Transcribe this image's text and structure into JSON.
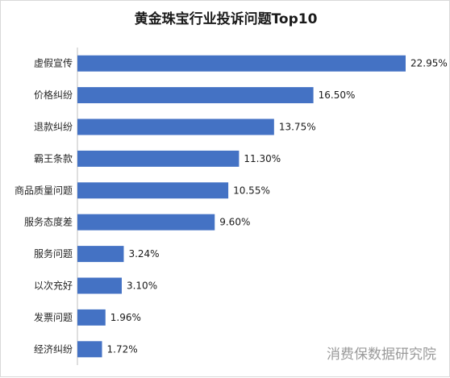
{
  "chart_data": {
    "type": "bar",
    "orientation": "horizontal",
    "title": "黄金珠宝行业投诉问题Top10",
    "categories": [
      "虚假宣传",
      "价格纠纷",
      "退款纠纷",
      "霸王条款",
      "商品质量问题",
      "服务态度差",
      "服务问题",
      "以次充好",
      "发票问题",
      "经济纠纷"
    ],
    "values": [
      22.95,
      16.5,
      13.75,
      11.3,
      10.55,
      9.6,
      3.24,
      3.1,
      1.96,
      1.72
    ],
    "value_labels": [
      "22.95%",
      "16.50%",
      "13.75%",
      "11.30%",
      "10.55%",
      "9.60%",
      "3.24%",
      "3.10%",
      "1.96%",
      "1.72%"
    ],
    "xlabel": "",
    "ylabel": "",
    "xlim": [
      0,
      22.95
    ],
    "grid": false,
    "legend": "none",
    "bar_color": "#4472C4",
    "axis_color": "#bfbfbf"
  },
  "watermark": "消费保数据研究院"
}
